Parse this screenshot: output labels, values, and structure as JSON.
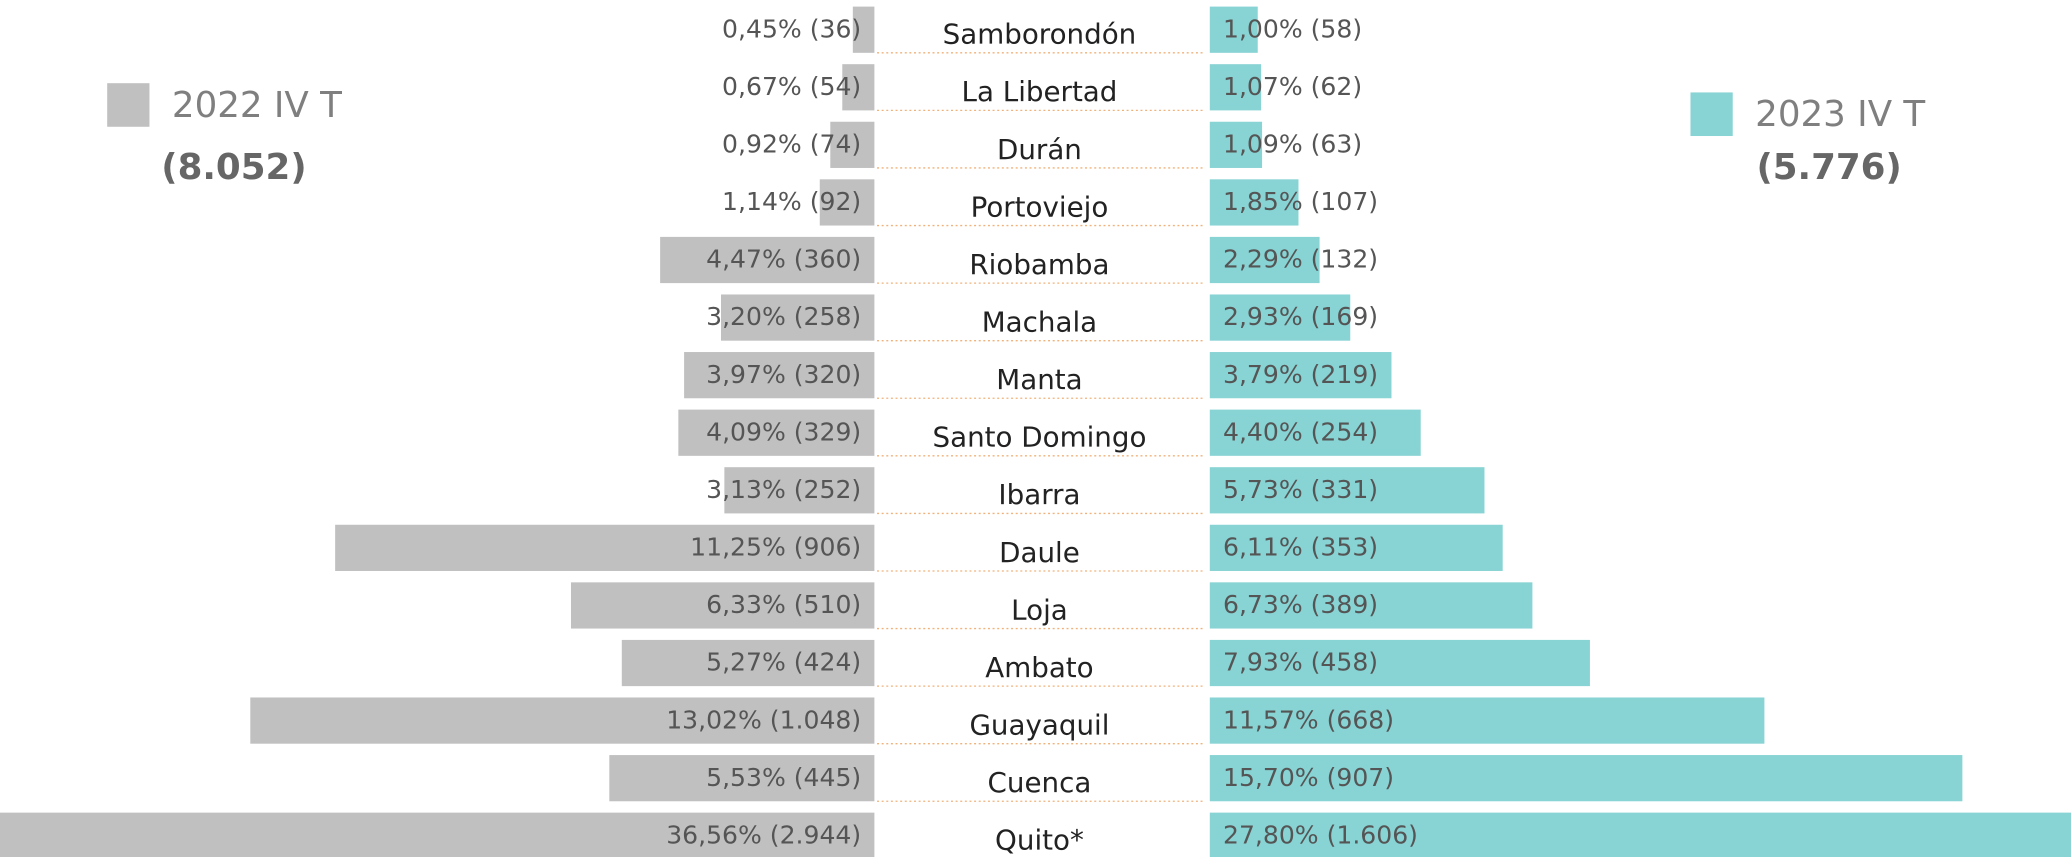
{
  "chart_data": {
    "type": "butterfly",
    "categories": [
      "Samborondón",
      "La Libertad",
      "Durán",
      "Portoviejo",
      "Riobamba",
      "Machala",
      "Manta",
      "Santo Domingo",
      "Ibarra",
      "Daule",
      "Loja",
      "Ambato",
      "Guayaquil",
      "Cuenca",
      "Quito*"
    ],
    "series": [
      {
        "name": "2022 IV T",
        "total": "(8.052)",
        "color": "#c0c0c0",
        "side": "left",
        "values": [
          0.45,
          0.67,
          0.92,
          1.14,
          4.47,
          3.2,
          3.97,
          4.09,
          3.13,
          11.25,
          6.33,
          5.27,
          13.02,
          5.53,
          36.56
        ],
        "value_labels": [
          "0,45% (36)",
          "0,67% (54)",
          "0,92% (74)",
          "1,14% (92)",
          "4,47% (360)",
          "3,20% (258)",
          "3,97% (320)",
          "4,09% (329)",
          "3,13% (252)",
          "11,25% (906)",
          "6,33% (510)",
          "5,27% (424)",
          "13,02% (1.048)",
          "5,53% (445)",
          "36,56% (2.944)"
        ]
      },
      {
        "name": "2023 IV T",
        "total": "(5.776)",
        "color": "#88d3d4",
        "side": "right",
        "values": [
          1.0,
          1.07,
          1.09,
          1.85,
          2.29,
          2.93,
          3.79,
          4.4,
          5.73,
          6.11,
          6.73,
          7.93,
          11.57,
          15.7,
          27.8
        ],
        "value_labels": [
          "1,00% (58)",
          "1,07% (62)",
          "1,09% (63)",
          "1,85% (107)",
          "2,29% (132)",
          "2,93% (169)",
          "3,79% (219)",
          "4,40% (254)",
          "5,73% (331)",
          "6,11% (353)",
          "6,73% (389)",
          "7,93% (458)",
          "11,57% (668)",
          "15,70% (907)",
          "27,80% (1.606)"
        ]
      }
    ]
  }
}
